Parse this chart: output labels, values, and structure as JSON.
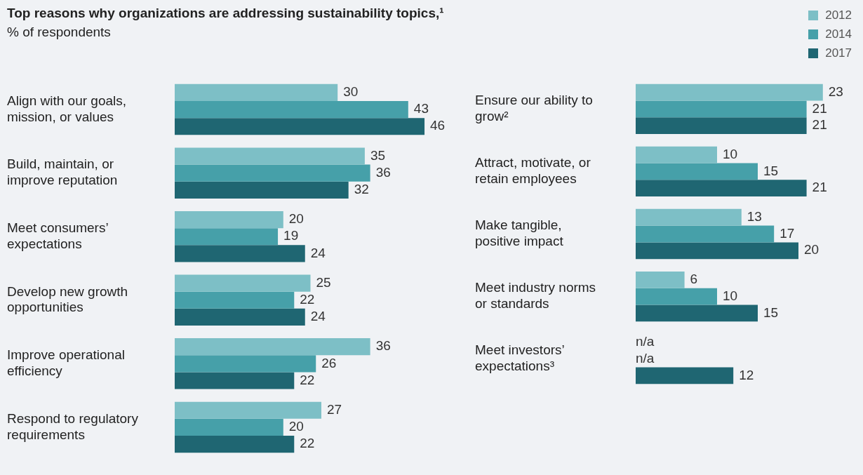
{
  "chart_data": [
    {
      "type": "bar",
      "orientation": "horizontal",
      "title": "Top reasons why organizations are addressing sustainability topics,¹",
      "subtitle": "% of respondents",
      "categories": [
        "Align with our goals, mission, or values",
        "Build, maintain, or improve reputation",
        "Meet consumers’ expectations",
        "Develop new growth opportunities",
        "Improve operational efficiency",
        "Respond to regulatory requirements"
      ],
      "tick_labels": "y",
      "legend": false,
      "data_labels": true,
      "series": [
        {
          "color": "#7dbfc6",
          "values": [
            30,
            35,
            20,
            25,
            36,
            27
          ]
        },
        {
          "color": "#46a0a9",
          "values": [
            43,
            36,
            19,
            22,
            26,
            20
          ]
        },
        {
          "color": "#1f6672",
          "values": [
            46,
            32,
            24,
            24,
            22,
            22
          ]
        }
      ]
    },
    {
      "type": "bar",
      "orientation": "horizontal",
      "categories": [
        "Ensure our ability to grow²",
        "Attract, motivate, or retain employees",
        "Make tangible, positive impact",
        "Meet industry norms or standards",
        "Meet investors’ expectations³"
      ],
      "tick_labels": "y",
      "legend": "top right",
      "data_labels": true,
      "series": [
        {
          "name": "2012",
          "color": "#7dbfc6",
          "values": [
            23,
            10,
            13,
            6,
            null
          ],
          "value_labels": [
            "23",
            "10",
            "13",
            "6",
            "n/a"
          ]
        },
        {
          "name": "2014",
          "color": "#46a0a9",
          "values": [
            21,
            15,
            17,
            10,
            null
          ],
          "value_labels": [
            "21",
            "15",
            "17",
            "10",
            "n/a"
          ]
        },
        {
          "name": "2017",
          "color": "#1f6672",
          "values": [
            21,
            21,
            20,
            15,
            12
          ]
        }
      ]
    }
  ]
}
